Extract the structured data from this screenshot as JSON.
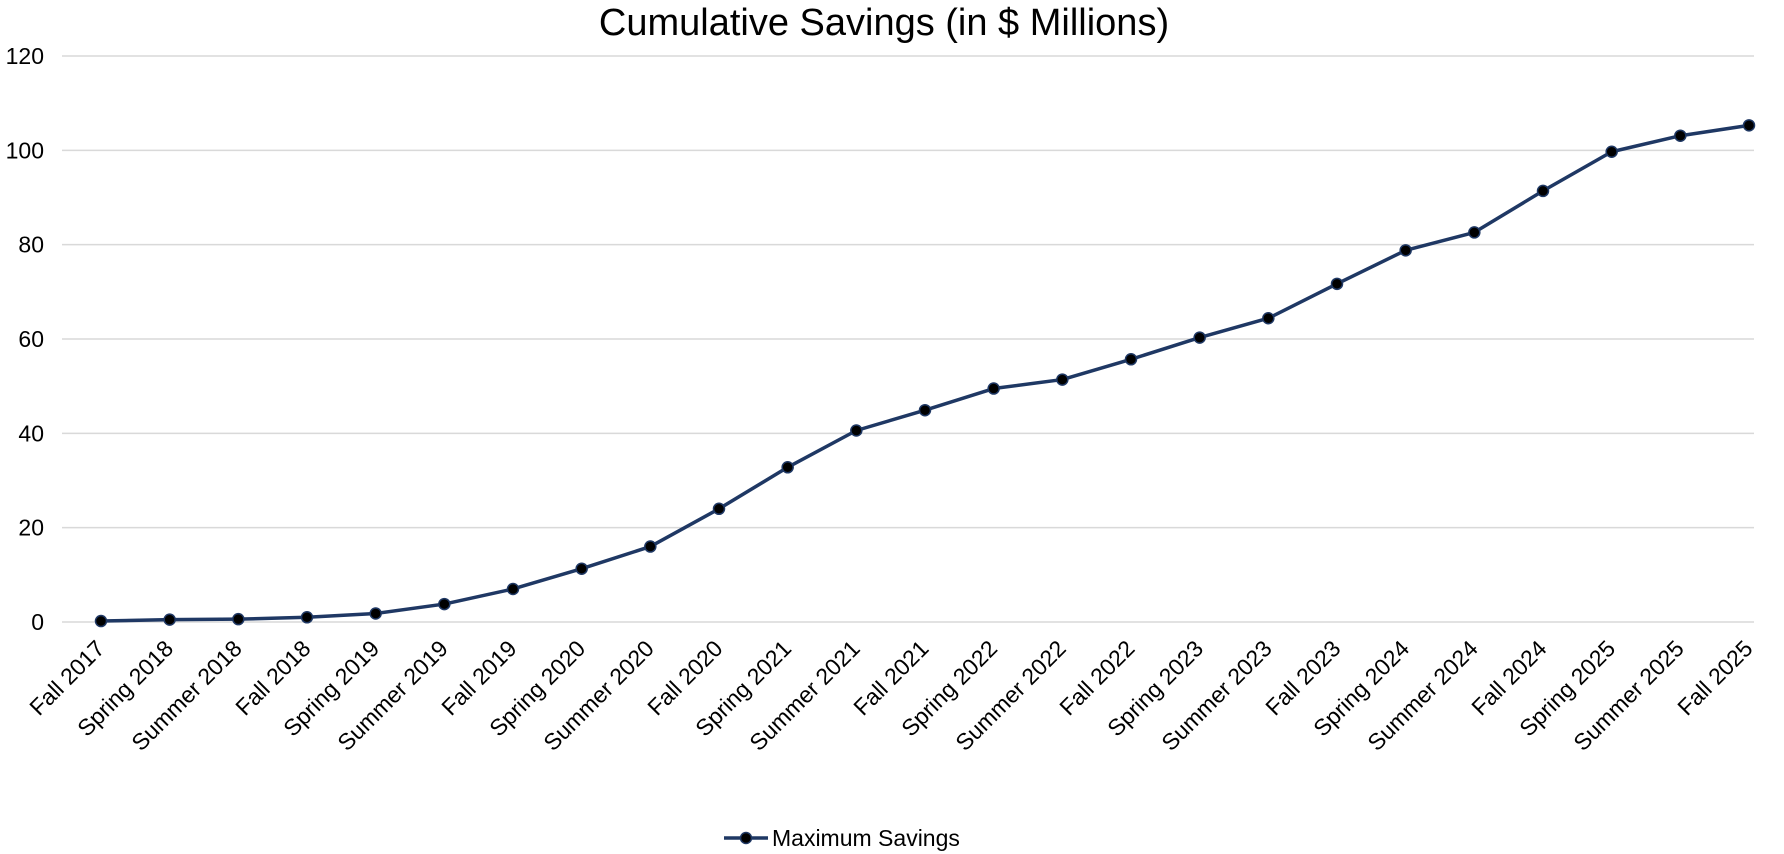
{
  "chart_data": {
    "type": "line",
    "title": "Cumulative Savings (in $ Millions)",
    "xlabel": "",
    "ylabel": "",
    "ylim": [
      0,
      120
    ],
    "yticks": [
      0,
      20,
      40,
      60,
      80,
      100,
      120
    ],
    "grid": true,
    "legend_position": "bottom",
    "categories": [
      "Fall 2017",
      "Spring 2018",
      "Summer 2018",
      "Fall 2018",
      "Spring 2019",
      "Summer 2019",
      "Fall 2019",
      "Spring 2020",
      "Summer 2020",
      "Fall 2020",
      "Spring 2021",
      "Summer 2021",
      "Fall 2021",
      "Spring 2022",
      "Summer 2022",
      "Fall 2022",
      "Spring 2023",
      "Summer 2023",
      "Fall 2023",
      "Spring 2024",
      "Summer 2024",
      "Fall 2024",
      "Spring 2025",
      "Summer 2025",
      "Fall 2025"
    ],
    "series": [
      {
        "name": "Maximum Savings",
        "color": "#1f3864",
        "values": [
          0.2,
          0.5,
          0.6,
          1.0,
          1.8,
          3.8,
          7.0,
          11.3,
          16.0,
          24.0,
          32.8,
          40.6,
          44.9,
          49.5,
          51.4,
          55.7,
          60.3,
          64.4,
          71.7,
          78.8,
          82.6,
          91.4,
          99.7,
          103.1,
          105.3
        ]
      }
    ]
  }
}
